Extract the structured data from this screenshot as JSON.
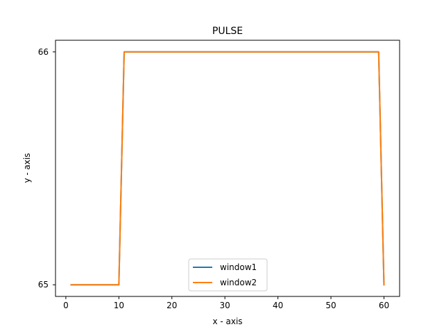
{
  "chart_data": {
    "type": "line",
    "title": "PULSE",
    "xlabel": "x - axis",
    "ylabel": "y - axis",
    "xlim": [
      -1.95,
      62.95
    ],
    "ylim": [
      64.95,
      66.05
    ],
    "xticks": [
      0,
      10,
      20,
      30,
      40,
      50,
      60
    ],
    "yticks": [
      65,
      66
    ],
    "grid": false,
    "legend_position": "lower center",
    "series": [
      {
        "name": "window1",
        "color": "#1f77b4",
        "x": [
          1,
          10,
          11,
          59,
          60
        ],
        "y": [
          65,
          65,
          66,
          66,
          65
        ]
      },
      {
        "name": "window2",
        "color": "#ff7f0e",
        "x": [
          1,
          10,
          11,
          59,
          60
        ],
        "y": [
          65,
          65,
          66,
          66,
          65
        ]
      }
    ]
  }
}
